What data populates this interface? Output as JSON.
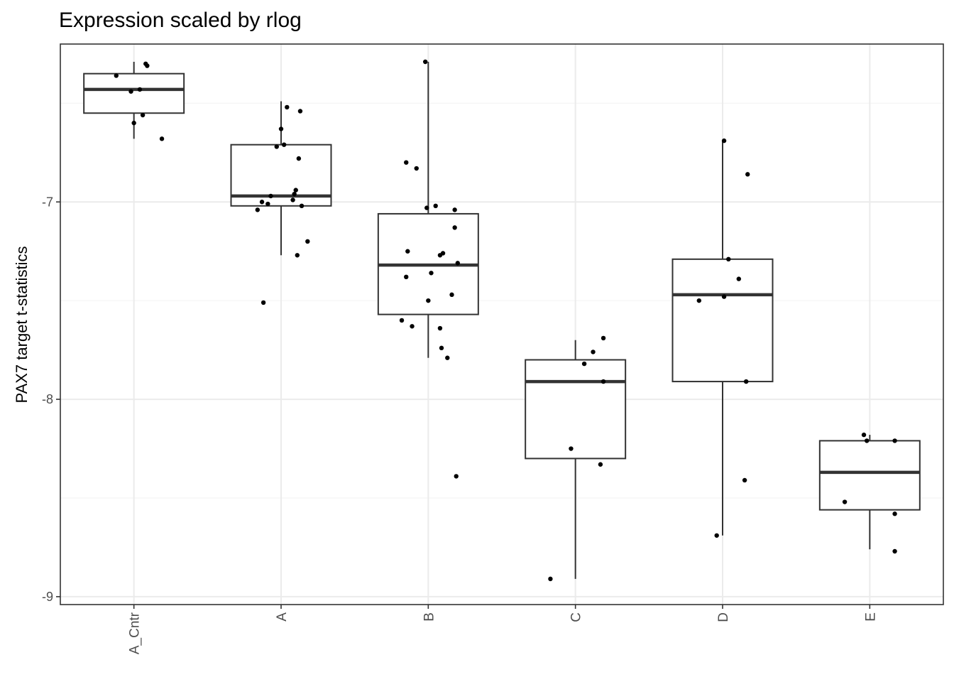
{
  "chart_data": {
    "type": "boxplot",
    "title": "Expression scaled by rlog",
    "xlabel": "",
    "ylabel": "PAX7 target t-statistics",
    "categories": [
      "A_Cntr",
      "A",
      "B",
      "C",
      "D",
      "E"
    ],
    "ylim": [
      -9.04,
      -6.2
    ],
    "yticks": [
      -9,
      -8,
      -7
    ],
    "grid": true,
    "legend": "none",
    "colors": {
      "box": "#333333",
      "points": "#000000",
      "grid_major": "#ebebeb",
      "grid_minor": "#f5f5f5",
      "panel_border": "#333333",
      "tick_label": "#4d4d4d"
    },
    "boxes": [
      {
        "category": "A_Cntr",
        "whisker_low": -6.68,
        "q1": -6.55,
        "median": -6.43,
        "q3": -6.35,
        "whisker_high": -6.29
      },
      {
        "category": "A",
        "whisker_low": -7.27,
        "q1": -7.02,
        "median": -6.97,
        "q3": -6.71,
        "whisker_high": -6.49
      },
      {
        "category": "B",
        "whisker_low": -7.79,
        "q1": -7.57,
        "median": -7.32,
        "q3": -7.06,
        "whisker_high": -6.29
      },
      {
        "category": "C",
        "whisker_low": -8.91,
        "q1": -8.3,
        "median": -7.91,
        "q3": -7.8,
        "whisker_high": -7.7
      },
      {
        "category": "D",
        "whisker_low": -8.69,
        "q1": -7.91,
        "median": -7.47,
        "q3": -7.29,
        "whisker_high": -6.69
      },
      {
        "category": "E",
        "whisker_low": -8.76,
        "q1": -8.56,
        "median": -8.37,
        "q3": -8.21,
        "whisker_high": -8.18
      }
    ],
    "points": [
      {
        "category": "A_Cntr",
        "x_offset": -0.12,
        "y": -6.36
      },
      {
        "category": "A_Cntr",
        "x_offset": 0.08,
        "y": -6.3
      },
      {
        "category": "A_Cntr",
        "x_offset": 0.09,
        "y": -6.31
      },
      {
        "category": "A_Cntr",
        "x_offset": -0.02,
        "y": -6.44
      },
      {
        "category": "A_Cntr",
        "x_offset": 0.04,
        "y": -6.43
      },
      {
        "category": "A_Cntr",
        "x_offset": 0.06,
        "y": -6.56
      },
      {
        "category": "A_Cntr",
        "x_offset": 0.0,
        "y": -6.6
      },
      {
        "category": "A_Cntr",
        "x_offset": 0.19,
        "y": -6.68
      },
      {
        "category": "A",
        "x_offset": 0.04,
        "y": -6.52
      },
      {
        "category": "A",
        "x_offset": 0.13,
        "y": -6.54
      },
      {
        "category": "A",
        "x_offset": 0.0,
        "y": -6.63
      },
      {
        "category": "A",
        "x_offset": -0.03,
        "y": -6.72
      },
      {
        "category": "A",
        "x_offset": 0.02,
        "y": -6.71
      },
      {
        "category": "A",
        "x_offset": 0.12,
        "y": -6.78
      },
      {
        "category": "A",
        "x_offset": 0.1,
        "y": -6.94
      },
      {
        "category": "A",
        "x_offset": 0.09,
        "y": -6.96
      },
      {
        "category": "A",
        "x_offset": -0.07,
        "y": -6.97
      },
      {
        "category": "A",
        "x_offset": -0.13,
        "y": -7.0
      },
      {
        "category": "A",
        "x_offset": 0.08,
        "y": -6.99
      },
      {
        "category": "A",
        "x_offset": -0.09,
        "y": -7.01
      },
      {
        "category": "A",
        "x_offset": 0.14,
        "y": -7.02
      },
      {
        "category": "A",
        "x_offset": -0.16,
        "y": -7.04
      },
      {
        "category": "A",
        "x_offset": 0.18,
        "y": -7.2
      },
      {
        "category": "A",
        "x_offset": 0.11,
        "y": -7.27
      },
      {
        "category": "A",
        "x_offset": -0.12,
        "y": -7.51
      },
      {
        "category": "B",
        "x_offset": -0.02,
        "y": -6.29
      },
      {
        "category": "B",
        "x_offset": -0.15,
        "y": -6.8
      },
      {
        "category": "B",
        "x_offset": -0.08,
        "y": -6.83
      },
      {
        "category": "B",
        "x_offset": -0.01,
        "y": -7.03
      },
      {
        "category": "B",
        "x_offset": 0.05,
        "y": -7.02
      },
      {
        "category": "B",
        "x_offset": 0.18,
        "y": -7.04
      },
      {
        "category": "B",
        "x_offset": 0.18,
        "y": -7.13
      },
      {
        "category": "B",
        "x_offset": -0.14,
        "y": -7.25
      },
      {
        "category": "B",
        "x_offset": 0.08,
        "y": -7.27
      },
      {
        "category": "B",
        "x_offset": 0.1,
        "y": -7.26
      },
      {
        "category": "B",
        "x_offset": 0.2,
        "y": -7.31
      },
      {
        "category": "B",
        "x_offset": 0.02,
        "y": -7.36
      },
      {
        "category": "B",
        "x_offset": -0.15,
        "y": -7.38
      },
      {
        "category": "B",
        "x_offset": 0.16,
        "y": -7.47
      },
      {
        "category": "B",
        "x_offset": 0.0,
        "y": -7.5
      },
      {
        "category": "B",
        "x_offset": -0.18,
        "y": -7.6
      },
      {
        "category": "B",
        "x_offset": -0.11,
        "y": -7.63
      },
      {
        "category": "B",
        "x_offset": 0.08,
        "y": -7.64
      },
      {
        "category": "B",
        "x_offset": 0.09,
        "y": -7.74
      },
      {
        "category": "B",
        "x_offset": 0.13,
        "y": -7.79
      },
      {
        "category": "B",
        "x_offset": 0.19,
        "y": -8.39
      },
      {
        "category": "C",
        "x_offset": 0.19,
        "y": -7.69
      },
      {
        "category": "C",
        "x_offset": 0.12,
        "y": -7.76
      },
      {
        "category": "C",
        "x_offset": 0.06,
        "y": -7.82
      },
      {
        "category": "C",
        "x_offset": 0.19,
        "y": -7.91
      },
      {
        "category": "C",
        "x_offset": -0.03,
        "y": -8.25
      },
      {
        "category": "C",
        "x_offset": 0.17,
        "y": -8.33
      },
      {
        "category": "C",
        "x_offset": -0.17,
        "y": -8.91
      },
      {
        "category": "D",
        "x_offset": 0.01,
        "y": -6.69
      },
      {
        "category": "D",
        "x_offset": 0.17,
        "y": -6.86
      },
      {
        "category": "D",
        "x_offset": 0.04,
        "y": -7.29
      },
      {
        "category": "D",
        "x_offset": 0.11,
        "y": -7.39
      },
      {
        "category": "D",
        "x_offset": 0.01,
        "y": -7.48
      },
      {
        "category": "D",
        "x_offset": -0.16,
        "y": -7.5
      },
      {
        "category": "D",
        "x_offset": 0.16,
        "y": -7.91
      },
      {
        "category": "D",
        "x_offset": 0.15,
        "y": -8.41
      },
      {
        "category": "D",
        "x_offset": -0.04,
        "y": -8.69
      },
      {
        "category": "E",
        "x_offset": -0.04,
        "y": -8.18
      },
      {
        "category": "E",
        "x_offset": -0.02,
        "y": -8.21
      },
      {
        "category": "E",
        "x_offset": 0.17,
        "y": -8.21
      },
      {
        "category": "E",
        "x_offset": -0.17,
        "y": -8.52
      },
      {
        "category": "E",
        "x_offset": 0.17,
        "y": -8.58
      },
      {
        "category": "E",
        "x_offset": 0.17,
        "y": -8.77
      }
    ]
  }
}
